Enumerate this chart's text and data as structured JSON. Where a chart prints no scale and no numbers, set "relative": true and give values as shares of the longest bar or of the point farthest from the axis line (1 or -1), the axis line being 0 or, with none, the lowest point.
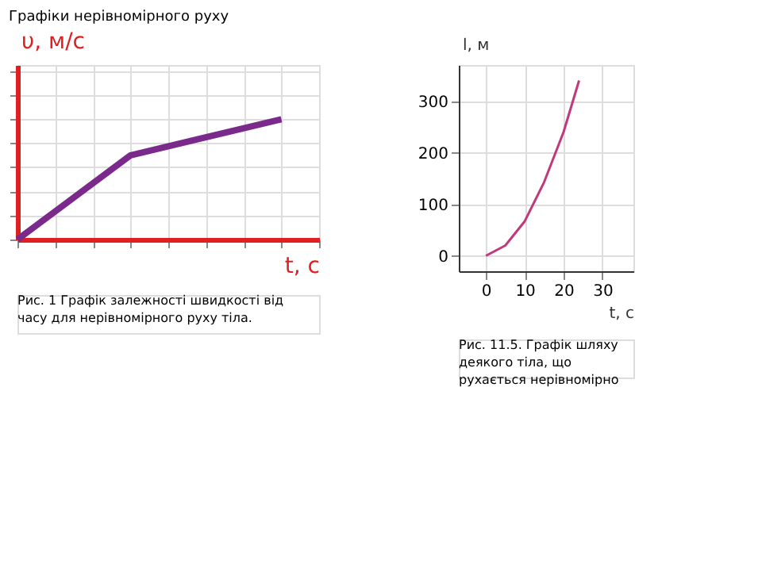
{
  "chart_data": [
    {
      "type": "line",
      "title": "Графіки нерівномірного руху",
      "xlabel": "t, с",
      "ylabel": "υ, м/с",
      "relative": true,
      "grid": true,
      "tick_labels": false,
      "categories": [
        null,
        null,
        null,
        null,
        null,
        null,
        null,
        null
      ],
      "series": [
        {
          "color": "#7b2a8c",
          "values": [
            0,
            null,
            null,
            0.7,
            null,
            null,
            null,
            1
          ]
        }
      ],
      "annotations": [
        "Рис. 1 Графік залежності швидкості від часу для нерівномірного руху тіла."
      ]
    },
    {
      "type": "line",
      "xlabel": "t, с",
      "ylabel": "l, м",
      "xlim": [
        -7,
        38
      ],
      "ylim": [
        -30,
        370
      ],
      "xticks": [
        0,
        10,
        20,
        30
      ],
      "yticks": [
        0,
        100,
        200,
        300
      ],
      "grid": true,
      "series": [
        {
          "color": "#c0397a",
          "x": [
            0,
            5,
            10,
            15,
            20,
            24
          ],
          "values": [
            0,
            20,
            67,
            143,
            240,
            340
          ]
        }
      ],
      "annotations": [
        "Рис. 11.5. Графік шляху деякого тіла, що рухається нерівномірно"
      ]
    }
  ]
}
